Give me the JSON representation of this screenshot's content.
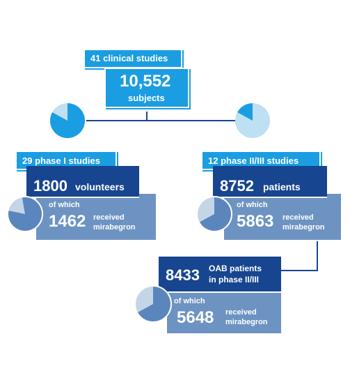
{
  "top": {
    "studies_label": "41 clinical studies",
    "subjects_value": "10,552",
    "subjects_label": "subjects"
  },
  "phase1": {
    "label": "29 phase I studies",
    "count": "1800",
    "count_label": "volunteers",
    "of_which": "of which",
    "received_count": "1462",
    "received_line1": "received",
    "received_line2": "mirabegron",
    "pie_fraction_of_total": 0.17,
    "pie_received_fraction": 0.81
  },
  "phase23": {
    "label": "12 phase II/III studies",
    "count": "8752",
    "count_label": "patients",
    "of_which": "of which",
    "received_count": "5863",
    "received_line1": "received",
    "received_line2": "mirabegron",
    "pie_fraction_of_total": 0.83,
    "pie_received_fraction": 0.67
  },
  "oab": {
    "count": "8433",
    "count_line1": "OAB patients",
    "count_line2": "in phase II/III",
    "of_which": "of which",
    "received_count": "5648",
    "received_line1": "received",
    "received_line2": "mirabegron",
    "pie_received_fraction": 0.67
  },
  "colors": {
    "cyan": "#1b9de2",
    "light_cyan": "#bde0f3",
    "dark_blue": "#17458f",
    "mid_blue": "#6d93c2",
    "pie_light": "#c5d5e8",
    "pie_dark": "#5b85bd"
  }
}
